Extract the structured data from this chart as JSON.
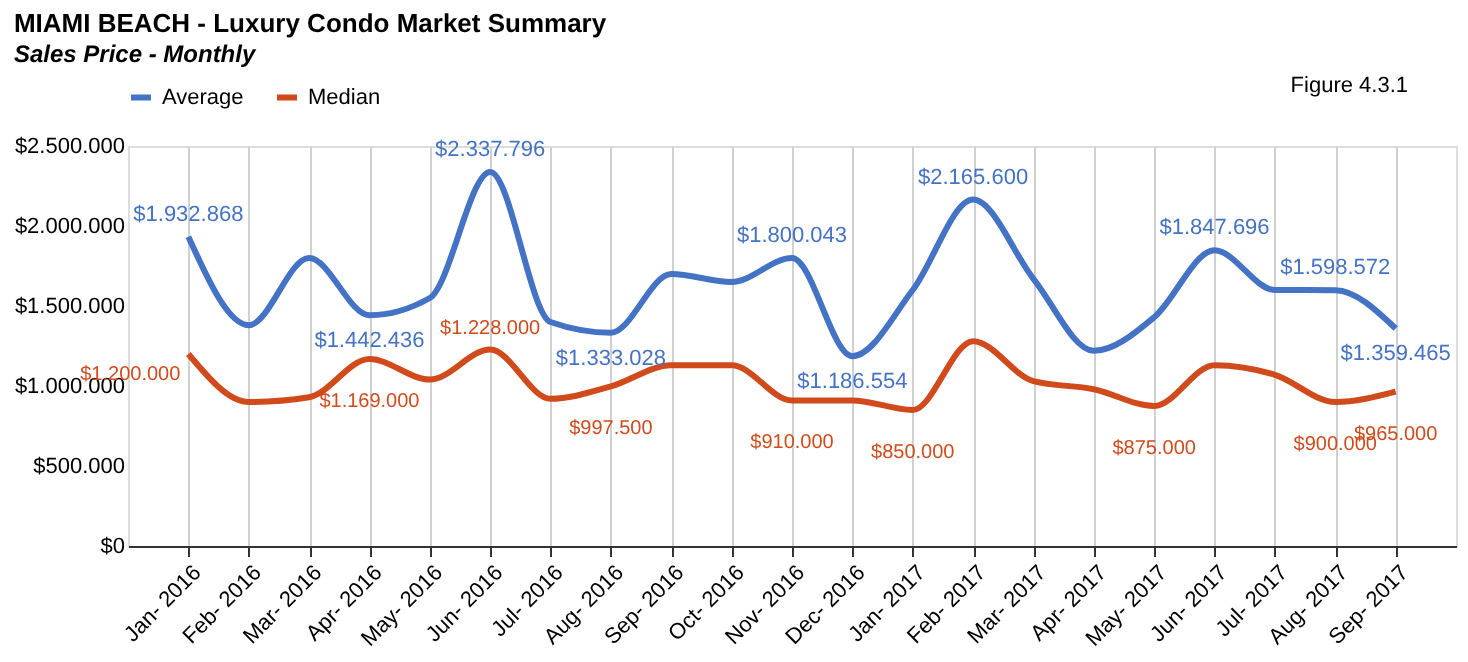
{
  "chart_data": {
    "type": "line",
    "title": "MIAMI BEACH - Luxury Condo Market Summary",
    "subtitle": "Sales Price - Monthly",
    "annotations": [
      "Figure 4.3.1"
    ],
    "categories": [
      "Jan- 2016",
      "Feb- 2016",
      "Mar- 2016",
      "Apr- 2016",
      "May- 2016",
      "Jun- 2016",
      "Jul- 2016",
      "Aug- 2016",
      "Sep- 2016",
      "Oct- 2016",
      "Nov- 2016",
      "Dec- 2016",
      "Jan- 2017",
      "Feb- 2017",
      "Mar- 2017",
      "Apr- 2017",
      "May- 2017",
      "Jun- 2017",
      "Jul- 2017",
      "Aug- 2017",
      "Sep- 2017"
    ],
    "series": [
      {
        "name": "Average",
        "color": "#4472c4",
        "values": [
          1932868,
          1380000,
          1800000,
          1442436,
          1550000,
          2337796,
          1400000,
          1333028,
          1700000,
          1650000,
          1800043,
          1186554,
          1600000,
          2165600,
          1670000,
          1220000,
          1430000,
          1847696,
          1600000,
          1598572,
          1359465
        ],
        "value_labels": [
          "$1.932.868",
          null,
          null,
          "$1.442.436",
          null,
          "$2.337.796",
          null,
          "$1.333.028",
          null,
          null,
          "$1.800.043",
          "$1.186.554",
          null,
          "$2.165.600",
          null,
          null,
          null,
          "$1.847.696",
          null,
          "$1.598.572",
          "$1.359.465"
        ]
      },
      {
        "name": "Median",
        "color": "#d04a1c",
        "values": [
          1200000,
          900000,
          930000,
          1169000,
          1040000,
          1228000,
          920000,
          997500,
          1130000,
          1130000,
          910000,
          910000,
          850000,
          1280000,
          1030000,
          980000,
          875000,
          1130000,
          1070000,
          900000,
          965000
        ],
        "value_labels": [
          "$1.200.000",
          null,
          null,
          "$1.169.000",
          null,
          "$1.228.000",
          null,
          "$997.500",
          null,
          null,
          "$910.000",
          null,
          "$850.000",
          null,
          null,
          null,
          "$875.000",
          null,
          null,
          "$900.000",
          "$965.000"
        ]
      }
    ],
    "ylim": [
      0,
      2500000
    ],
    "yticks": [
      {
        "value": 0,
        "label": "$0"
      },
      {
        "value": 500000,
        "label": "$500.000"
      },
      {
        "value": 1000000,
        "label": "$1.000.000"
      },
      {
        "value": 1500000,
        "label": "$1.500.000"
      },
      {
        "value": 2000000,
        "label": "$2.000.000"
      },
      {
        "value": 2500000,
        "label": "$2.500.000"
      }
    ],
    "grid": "x",
    "legend": "top",
    "marker": "none",
    "line_style": "solid"
  }
}
